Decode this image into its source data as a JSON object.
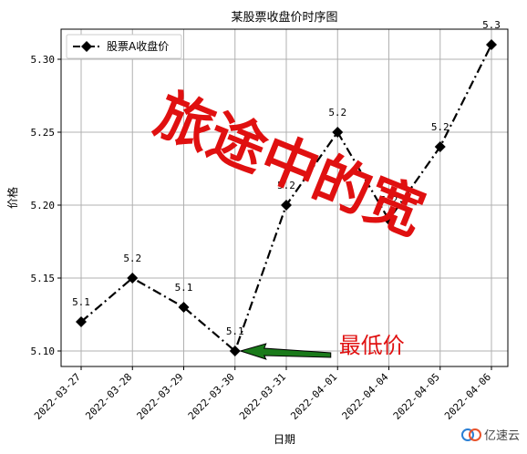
{
  "chart_data": {
    "type": "line",
    "title": "某股票收盘价时序图",
    "xlabel": "日期",
    "ylabel": "价格",
    "categories": [
      "2022-03-27",
      "2022-03-28",
      "2022-03-29",
      "2022-03-30",
      "2022-03-31",
      "2022-04-01",
      "2022-04-04",
      "2022-04-05",
      "2022-04-06"
    ],
    "series": [
      {
        "name": "股票A收盘价",
        "values": [
          5.12,
          5.15,
          5.13,
          5.1,
          5.2,
          5.25,
          5.19,
          5.24,
          5.31
        ],
        "labels": [
          "5.1",
          "5.2",
          "5.1",
          "5.1",
          "5.2",
          "5.2",
          "5.2",
          "5.2",
          "5.3"
        ],
        "color": "#000000",
        "linestyle": "dash-dot",
        "marker": "diamond"
      }
    ],
    "ylim": [
      5.09,
      5.32
    ],
    "yticks": [
      "5.10",
      "5.15",
      "5.20",
      "5.25",
      "5.30"
    ],
    "grid": true,
    "legend": "top-left",
    "annotation": {
      "text": "最低价",
      "point_index": 3,
      "arrow_color": "#1a7a1a",
      "text_color": "#e01010"
    },
    "watermark": {
      "text": "旅途中的宽",
      "color": "#e01010"
    }
  },
  "logo": {
    "text": "亿速云"
  }
}
